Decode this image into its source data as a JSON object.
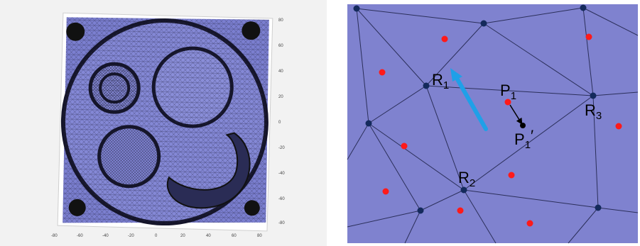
{
  "left_panel": {
    "x_ticks": [
      "-80",
      "-60",
      "-40",
      "-20",
      "0",
      "20",
      "40",
      "60",
      "80"
    ],
    "y_ticks": [
      "80",
      "60",
      "40",
      "20",
      "0",
      "-20",
      "-40",
      "-60",
      "-80"
    ],
    "mesh_color": "#7b7fd0",
    "edge_color": "#1a1a2e"
  },
  "right_panel": {
    "background": "#7f82cf",
    "edge_color": "#2b2f5a",
    "node_color": "#142a5c",
    "point_color": "#ff1a1a",
    "arrow_color": "#1fa0e8",
    "labels": {
      "R1": "R",
      "R1_sub": "1",
      "R2": "R",
      "R2_sub": "2",
      "R3": "R",
      "R3_sub": "3",
      "P1": "P",
      "P1_sub": "1",
      "P1p": "P",
      "P1p_sub": "1",
      "P1p_prime": "′"
    }
  }
}
